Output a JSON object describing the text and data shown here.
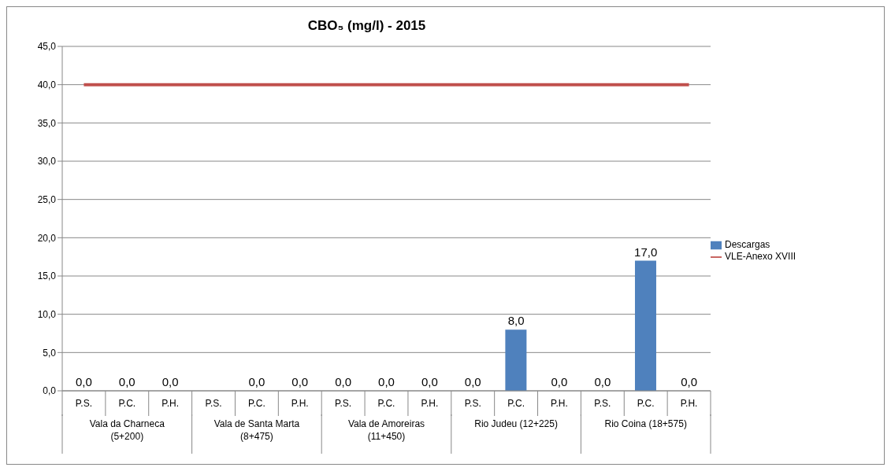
{
  "chart_data": {
    "type": "bar",
    "title": "CBO₅ (mg/l) - 2015",
    "categories": [
      "P.S.",
      "P.C.",
      "P.H.",
      "P.S.",
      "P.C.",
      "P.H.",
      "P.S.",
      "P.C.",
      "P.H.",
      "P.S.",
      "P.C.",
      "P.H.",
      "P.S.",
      "P.C.",
      "P.H."
    ],
    "annotations": [
      "Vala da Charneca (5+200)",
      "Vala de Santa Marta (8+475)",
      "Vala de Amoreiras (11+450)",
      "Rio Judeu (12+225)",
      "Rio Coina (18+575)"
    ],
    "series": [
      {
        "name": "Descargas",
        "color": "#4f81bd",
        "values": [
          0,
          0,
          0,
          null,
          0,
          0,
          0,
          0,
          0,
          0,
          8,
          0,
          0,
          17,
          0
        ],
        "value_labels": [
          "0,0",
          "0,0",
          "0,0",
          null,
          "0,0",
          "0,0",
          "0,0",
          "0,0",
          "0,0",
          "0,0",
          "8,0",
          "0,0",
          "0,0",
          "17,0",
          "0,0"
        ]
      },
      {
        "name": "VLE-Anexo XVIII",
        "type": "line",
        "color": "#c0504d",
        "values": [
          40,
          40,
          40,
          40,
          40,
          40,
          40,
          40,
          40,
          40,
          40,
          40,
          40,
          40,
          40
        ]
      }
    ],
    "ylim": [
      0,
      45
    ],
    "yticks": [
      {
        "value": 0,
        "label": "0,0"
      },
      {
        "value": 5,
        "label": "5,0"
      },
      {
        "value": 10,
        "label": "10,0"
      },
      {
        "value": 15,
        "label": "15,0"
      },
      {
        "value": 20,
        "label": "20,0"
      },
      {
        "value": 25,
        "label": "25,0"
      },
      {
        "value": 30,
        "label": "30,0"
      },
      {
        "value": 35,
        "label": "35,0"
      },
      {
        "value": 40,
        "label": "40,0"
      },
      {
        "value": 45,
        "label": "45,0"
      }
    ],
    "grid": "y",
    "legend": "right",
    "marker": "none"
  }
}
